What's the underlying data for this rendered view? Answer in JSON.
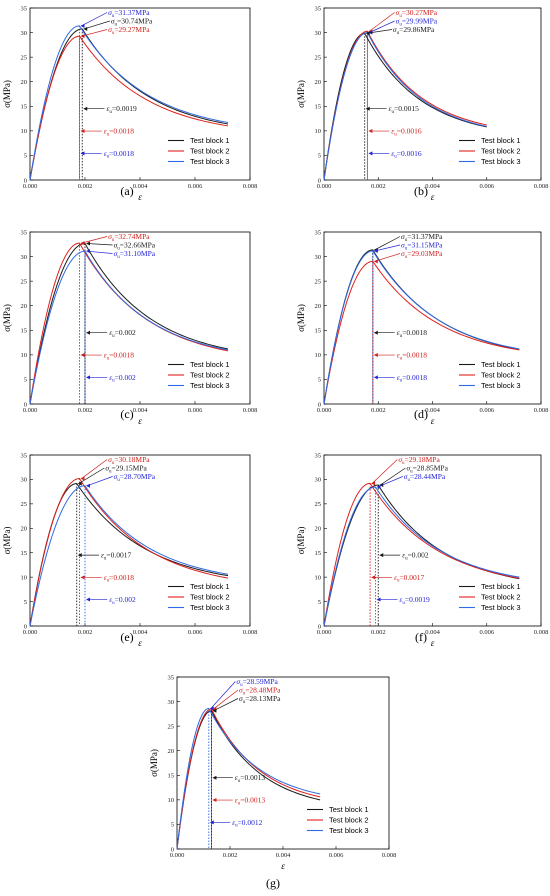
{
  "figure": {
    "colors": {
      "series": [
        "#1a1a1a",
        "#e0201b",
        "#2e6be6"
      ],
      "annotations": [
        "#1a1a1a",
        "#d0211c",
        "#2323d6"
      ]
    },
    "y_axis_label": "σ(MPa)",
    "x_axis_label": "ε",
    "legend_labels": [
      "Test block 1",
      "Test block 2",
      "Test block 3"
    ]
  },
  "chart_data": [
    {
      "panel": "(a)",
      "type": "line",
      "xlim": [
        0,
        0.008
      ],
      "ylim": [
        0,
        35
      ],
      "x_ticks": [
        "0.000",
        "0.002",
        "0.004",
        "0.006",
        "0.008"
      ],
      "y_ticks": [
        "0",
        "5",
        "10",
        "15",
        "20",
        "25",
        "30",
        "35"
      ],
      "legend": "lower-right",
      "series": [
        {
          "name": "Test block 1",
          "color": "#1a1a1a",
          "peak_strain": 0.0019,
          "peak_stress": 30.74,
          "end_strain": 0.0072,
          "end_stress": 11.4
        },
        {
          "name": "Test block 2",
          "color": "#e0201b",
          "peak_strain": 0.0018,
          "peak_stress": 29.27,
          "end_strain": 0.0072,
          "end_stress": 11.0
        },
        {
          "name": "Test block 3",
          "color": "#2e6be6",
          "peak_strain": 0.0018,
          "peak_stress": 31.37,
          "end_strain": 0.0072,
          "end_stress": 11.7
        }
      ],
      "peak_labels": [
        {
          "sub": "u",
          "text": "=31.37MPa",
          "series": 2
        },
        {
          "sub": "u",
          "text": "=30.74MPa",
          "series": 0
        },
        {
          "sub": "u",
          "text": "=29.27MPa",
          "series": 1
        }
      ],
      "strain_labels": [
        {
          "sub": "u",
          "text": "=0.0019",
          "series": 0
        },
        {
          "sub": "u",
          "text": "=0.0018",
          "series": 1
        },
        {
          "sub": "u",
          "text": "=0.0018",
          "series": 2
        }
      ]
    },
    {
      "panel": "(b)",
      "type": "line",
      "xlim": [
        0,
        0.008
      ],
      "ylim": [
        0,
        35
      ],
      "x_ticks": [
        "0.000",
        "0.002",
        "0.004",
        "0.006",
        "0.008"
      ],
      "y_ticks": [
        "0",
        "5",
        "10",
        "15",
        "20",
        "25",
        "30",
        "35"
      ],
      "legend": "lower-right",
      "series": [
        {
          "name": "Test block 1",
          "color": "#1a1a1a",
          "peak_strain": 0.0015,
          "peak_stress": 29.86,
          "end_strain": 0.006,
          "end_stress": 10.8
        },
        {
          "name": "Test block 2",
          "color": "#e0201b",
          "peak_strain": 0.0016,
          "peak_stress": 30.27,
          "end_strain": 0.006,
          "end_stress": 11.2
        },
        {
          "name": "Test block 3",
          "color": "#2e6be6",
          "peak_strain": 0.0016,
          "peak_stress": 29.99,
          "end_strain": 0.006,
          "end_stress": 10.9
        }
      ],
      "peak_labels": [
        {
          "sub": "u",
          "text": "=30.27MPa",
          "series": 1
        },
        {
          "sub": "u",
          "text": "=29.99MPa",
          "series": 2
        },
        {
          "sub": "u",
          "text": "=29.86MPa",
          "series": 0
        }
      ],
      "strain_labels": [
        {
          "sub": "u",
          "text": "=0.0015",
          "series": 0
        },
        {
          "sub": "u",
          "text": "=0.0016",
          "series": 1
        },
        {
          "sub": "u",
          "text": "=0.0016",
          "series": 2
        }
      ]
    },
    {
      "panel": "(c)",
      "type": "line",
      "xlim": [
        0,
        0.008
      ],
      "ylim": [
        0,
        35
      ],
      "x_ticks": [
        "0.000",
        "0.002",
        "0.004",
        "0.006",
        "0.008"
      ],
      "y_ticks": [
        "0",
        "5",
        "10",
        "15",
        "20",
        "25",
        "30",
        "35"
      ],
      "legend": "lower-right",
      "series": [
        {
          "name": "Test block 1",
          "color": "#1a1a1a",
          "peak_strain": 0.002,
          "peak_stress": 32.66,
          "end_strain": 0.0072,
          "end_stress": 11.2
        },
        {
          "name": "Test block 2",
          "color": "#e0201b",
          "peak_strain": 0.0018,
          "peak_stress": 32.74,
          "end_strain": 0.0072,
          "end_stress": 10.8
        },
        {
          "name": "Test block 3",
          "color": "#2e6be6",
          "peak_strain": 0.002,
          "peak_stress": 31.1,
          "end_strain": 0.0072,
          "end_stress": 11.0
        }
      ],
      "peak_labels": [
        {
          "sub": "u",
          "text": "=32.74MPa",
          "series": 1
        },
        {
          "sub": "u",
          "text": "=32.66MPa",
          "series": 0
        },
        {
          "sub": "u",
          "text": "=31.10MPa",
          "series": 2
        }
      ],
      "strain_labels": [
        {
          "sub": "u",
          "text": "=0.002",
          "series": 0
        },
        {
          "sub": "u",
          "text": "=0.0018",
          "series": 1
        },
        {
          "sub": "u",
          "text": "=0.002",
          "series": 2
        }
      ]
    },
    {
      "panel": "(d)",
      "type": "line",
      "xlim": [
        0,
        0.008
      ],
      "ylim": [
        0,
        35
      ],
      "x_ticks": [
        "0.000",
        "0.002",
        "0.004",
        "0.006",
        "0.008"
      ],
      "y_ticks": [
        "0",
        "5",
        "10",
        "15",
        "20",
        "25",
        "30",
        "35"
      ],
      "legend": "lower-right",
      "series": [
        {
          "name": "Test block 1",
          "color": "#1a1a1a",
          "peak_strain": 0.0018,
          "peak_stress": 31.37,
          "end_strain": 0.0072,
          "end_stress": 11.1
        },
        {
          "name": "Test block 2",
          "color": "#e0201b",
          "peak_strain": 0.0018,
          "peak_stress": 29.03,
          "end_strain": 0.0072,
          "end_stress": 11.0
        },
        {
          "name": "Test block 3",
          "color": "#2e6be6",
          "peak_strain": 0.0018,
          "peak_stress": 31.15,
          "end_strain": 0.0072,
          "end_stress": 11.2
        }
      ],
      "peak_labels": [
        {
          "sub": "u",
          "text": "=31.37MPa",
          "series": 0
        },
        {
          "sub": "u",
          "text": "=31.15MPa",
          "series": 2
        },
        {
          "sub": "u",
          "text": "=29.03MPa",
          "series": 1
        }
      ],
      "strain_labels": [
        {
          "sub": "u",
          "text": "=0.0018",
          "series": 0
        },
        {
          "sub": "u",
          "text": "=0.0018",
          "series": 1
        },
        {
          "sub": "u",
          "text": "=0.0018",
          "series": 2
        }
      ]
    },
    {
      "panel": "(e)",
      "type": "line",
      "xlim": [
        0,
        0.008
      ],
      "ylim": [
        0,
        35
      ],
      "x_ticks": [
        "0.000",
        "0.002",
        "0.004",
        "0.006",
        "0.008"
      ],
      "y_ticks": [
        "0",
        "5",
        "10",
        "15",
        "20",
        "25",
        "30",
        "35"
      ],
      "legend": "lower-right",
      "series": [
        {
          "name": "Test block 1",
          "color": "#1a1a1a",
          "peak_strain": 0.0017,
          "peak_stress": 29.15,
          "end_strain": 0.0072,
          "end_stress": 10.3
        },
        {
          "name": "Test block 2",
          "color": "#e0201b",
          "peak_strain": 0.0018,
          "peak_stress": 30.18,
          "end_strain": 0.0072,
          "end_stress": 9.8
        },
        {
          "name": "Test block 3",
          "color": "#2e6be6",
          "peak_strain": 0.002,
          "peak_stress": 28.7,
          "end_strain": 0.0072,
          "end_stress": 10.6
        }
      ],
      "peak_labels": [
        {
          "sub": "u",
          "text": "=30.18MPa",
          "series": 1
        },
        {
          "sub": "u",
          "text": "=29.15MPa",
          "series": 0
        },
        {
          "sub": "u",
          "text": "=28.70MPa",
          "series": 2
        }
      ],
      "strain_labels": [
        {
          "sub": "u",
          "text": "=0.0017",
          "series": 0
        },
        {
          "sub": "u",
          "text": "=0.0018",
          "series": 1
        },
        {
          "sub": "u",
          "text": "=0.002",
          "series": 2
        }
      ]
    },
    {
      "panel": "(f)",
      "type": "line",
      "xlim": [
        0,
        0.008
      ],
      "ylim": [
        0,
        35
      ],
      "x_ticks": [
        "0.000",
        "0.002",
        "0.004",
        "0.006",
        "0.008"
      ],
      "y_ticks": [
        "0",
        "5",
        "10",
        "15",
        "20",
        "25",
        "30",
        "35"
      ],
      "legend": "lower-right",
      "series": [
        {
          "name": "Test block 1",
          "color": "#1a1a1a",
          "peak_strain": 0.002,
          "peak_stress": 28.85,
          "end_strain": 0.0072,
          "end_stress": 9.7
        },
        {
          "name": "Test block 2",
          "color": "#e0201b",
          "peak_strain": 0.0017,
          "peak_stress": 29.18,
          "end_strain": 0.0072,
          "end_stress": 9.8
        },
        {
          "name": "Test block 3",
          "color": "#2e6be6",
          "peak_strain": 0.0019,
          "peak_stress": 28.44,
          "end_strain": 0.0072,
          "end_stress": 10.0
        }
      ],
      "peak_labels": [
        {
          "sub": "u",
          "text": "=29.18MPa",
          "series": 1
        },
        {
          "sub": "u",
          "text": "=28.85MPa",
          "series": 0
        },
        {
          "sub": "u",
          "text": "=28.44MPa",
          "series": 2
        }
      ],
      "strain_labels": [
        {
          "sub": "u",
          "text": "=0.002",
          "series": 0
        },
        {
          "sub": "u",
          "text": "=0.0017",
          "series": 1
        },
        {
          "sub": "u",
          "text": "=0.0019",
          "series": 2
        }
      ]
    },
    {
      "panel": "(g)",
      "type": "line",
      "xlim": [
        0,
        0.008
      ],
      "ylim": [
        0,
        35
      ],
      "x_ticks": [
        "0.000",
        "0.002",
        "0.004",
        "0.006",
        "0.008"
      ],
      "y_ticks": [
        "0",
        "5",
        "10",
        "15",
        "20",
        "25",
        "30",
        "35"
      ],
      "legend": "lower-right",
      "series": [
        {
          "name": "Test block 1",
          "color": "#1a1a1a",
          "peak_strain": 0.0013,
          "peak_stress": 28.13,
          "end_strain": 0.0054,
          "end_stress": 10.0
        },
        {
          "name": "Test block 2",
          "color": "#e0201b",
          "peak_strain": 0.0013,
          "peak_stress": 28.48,
          "end_strain": 0.0054,
          "end_stress": 10.6
        },
        {
          "name": "Test block 3",
          "color": "#2e6be6",
          "peak_strain": 0.0012,
          "peak_stress": 28.59,
          "end_strain": 0.0054,
          "end_stress": 11.2
        }
      ],
      "peak_labels": [
        {
          "sub": "u",
          "text": "=28.59MPa",
          "series": 2
        },
        {
          "sub": "u",
          "text": "=28.48MPa",
          "series": 1
        },
        {
          "sub": "u",
          "text": "=28.13MPa",
          "series": 0
        }
      ],
      "strain_labels": [
        {
          "sub": "u",
          "text": "=0.0013",
          "series": 0
        },
        {
          "sub": "u",
          "text": "=0.0013",
          "series": 1
        },
        {
          "sub": "u",
          "text": "=0.0012",
          "series": 2
        }
      ]
    }
  ]
}
